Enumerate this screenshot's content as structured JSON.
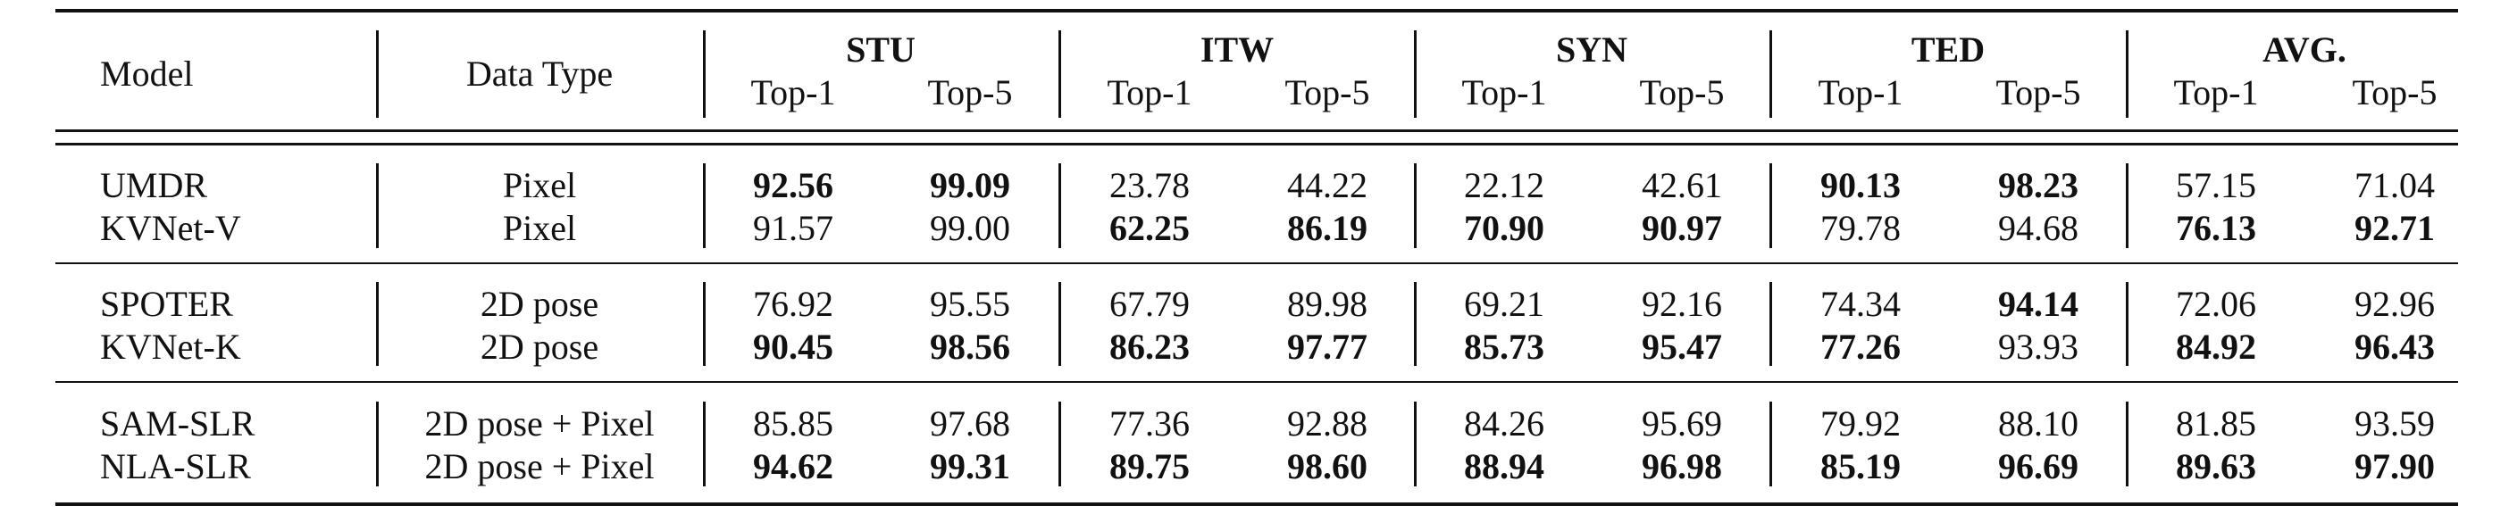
{
  "table": {
    "headers": {
      "model": "Model",
      "data_type": "Data Type",
      "groups": [
        "STU",
        "ITW",
        "SYN",
        "TED",
        "AVG."
      ],
      "sub": [
        "Top-1",
        "Top-5"
      ]
    },
    "sections": [
      [
        {
          "model": "UMDR",
          "type": "Pixel",
          "values": [
            "92.56",
            "99.09",
            "23.78",
            "44.22",
            "22.12",
            "42.61",
            "90.13",
            "98.23",
            "57.15",
            "71.04"
          ],
          "bold": [
            true,
            true,
            false,
            false,
            false,
            false,
            true,
            true,
            false,
            false
          ]
        },
        {
          "model": "KVNet-V",
          "type": "Pixel",
          "values": [
            "91.57",
            "99.00",
            "62.25",
            "86.19",
            "70.90",
            "90.97",
            "79.78",
            "94.68",
            "76.13",
            "92.71"
          ],
          "bold": [
            false,
            false,
            true,
            true,
            true,
            true,
            false,
            false,
            true,
            true
          ]
        }
      ],
      [
        {
          "model": "SPOTER",
          "type": "2D pose",
          "values": [
            "76.92",
            "95.55",
            "67.79",
            "89.98",
            "69.21",
            "92.16",
            "74.34",
            "94.14",
            "72.06",
            "92.96"
          ],
          "bold": [
            false,
            false,
            false,
            false,
            false,
            false,
            false,
            true,
            false,
            false
          ]
        },
        {
          "model": "KVNet-K",
          "type": "2D pose",
          "values": [
            "90.45",
            "98.56",
            "86.23",
            "97.77",
            "85.73",
            "95.47",
            "77.26",
            "93.93",
            "84.92",
            "96.43"
          ],
          "bold": [
            true,
            true,
            true,
            true,
            true,
            true,
            true,
            false,
            true,
            true
          ]
        }
      ],
      [
        {
          "model": "SAM-SLR",
          "type": "2D pose + Pixel",
          "values": [
            "85.85",
            "97.68",
            "77.36",
            "92.88",
            "84.26",
            "95.69",
            "79.92",
            "88.10",
            "81.85",
            "93.59"
          ],
          "bold": [
            false,
            false,
            false,
            false,
            false,
            false,
            false,
            false,
            false,
            false
          ]
        },
        {
          "model": "NLA-SLR",
          "type": "2D pose + Pixel",
          "values": [
            "94.62",
            "99.31",
            "89.75",
            "98.60",
            "88.94",
            "96.98",
            "85.19",
            "96.69",
            "89.63",
            "97.90"
          ],
          "bold": [
            true,
            true,
            true,
            true,
            true,
            true,
            true,
            true,
            true,
            true
          ]
        }
      ]
    ]
  }
}
